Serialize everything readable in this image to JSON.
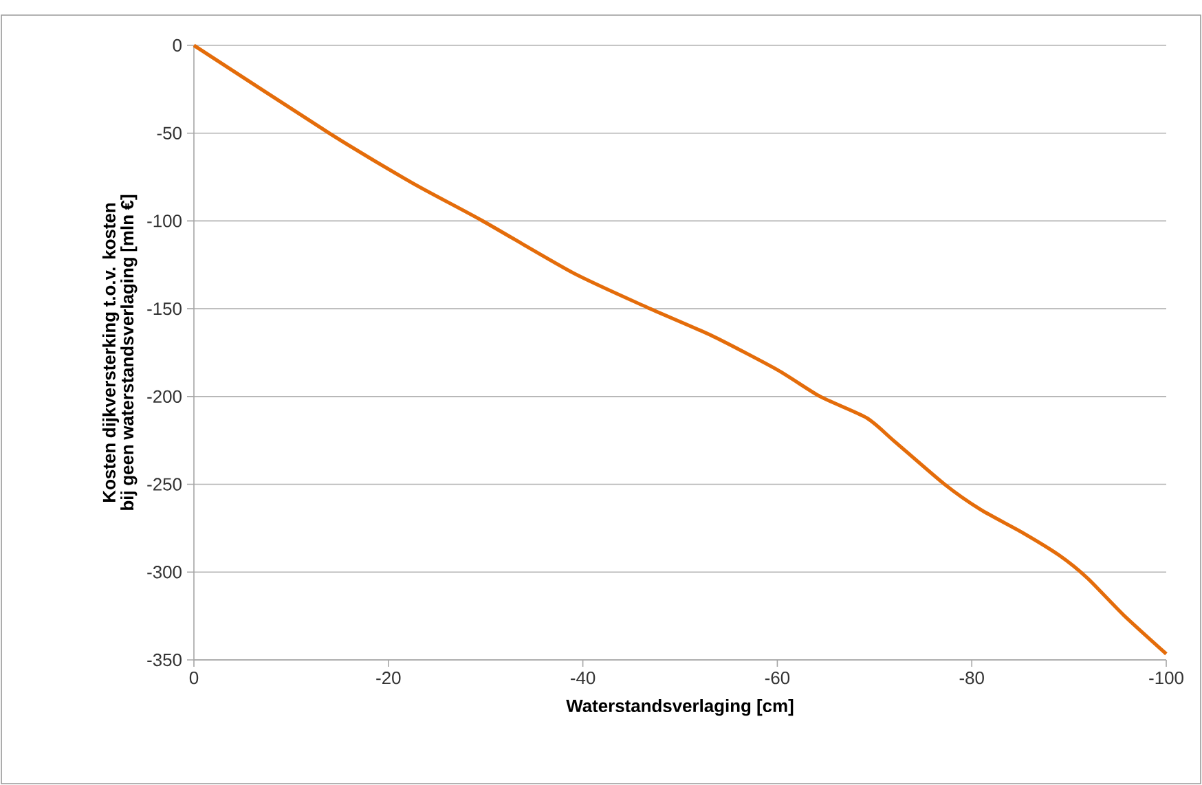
{
  "chart_data": {
    "type": "line",
    "xlabel": "Waterstandsverlaging  [cm]",
    "ylabel": "Kosten dijkversterking  t.o.v. kosten bij geen waterstandsverlaging  [mln €]",
    "x": [
      0,
      -14.0,
      -22.5,
      -29.6,
      -39.0,
      -46.6,
      -53.2,
      -60.0,
      -64.4,
      -69.2,
      -72.0,
      -77.2,
      -80.9,
      -85.2,
      -89.0,
      -91.9,
      -95.6,
      -100
    ],
    "series": [
      {
        "color": "#e46c0a",
        "values": [
          0,
          -50.3,
          -78.5,
          -99.7,
          -129.6,
          -149.2,
          -165.2,
          -184.8,
          -200,
          -212.2,
          -225.3,
          -250,
          -264.4,
          -277.5,
          -290.5,
          -303.5,
          -324.4,
          -346.6
        ]
      }
    ],
    "xlim": [
      0,
      -100
    ],
    "ylim": [
      -350,
      0
    ],
    "xticks": [
      0,
      -20,
      -40,
      -60,
      -80,
      -100
    ],
    "yticks": [
      0,
      -50,
      -100,
      -150,
      -200,
      -250,
      -300,
      -350
    ],
    "grid": "y",
    "marker": "none",
    "line_style": "solid"
  }
}
